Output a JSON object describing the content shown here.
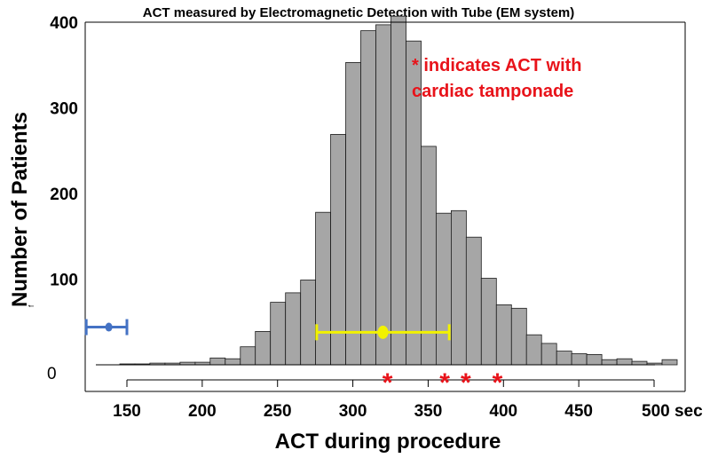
{
  "chart_data": {
    "type": "bar",
    "title": "ACT measured by Electromagnetic Detection with Tube (EM system)",
    "xlabel": "ACT during procedure",
    "ylabel": "Number of Patients",
    "ylabel_mark": "f",
    "x_unit": "sec",
    "xlim": [
      150,
      500
    ],
    "ylim": [
      0,
      400
    ],
    "bin_width": 10,
    "x_ticks": [
      150,
      200,
      250,
      300,
      350,
      400,
      450,
      500
    ],
    "x_tick_labels": [
      "150",
      "200",
      "250",
      "300",
      "350",
      "400",
      "450",
      "500 sec"
    ],
    "y_ticks": [
      100,
      200,
      300,
      400
    ],
    "y_tick_labels": [
      "100",
      "200",
      "300",
      "400"
    ],
    "y_zero_label": "0",
    "bins": [
      {
        "start": 150,
        "count": 1
      },
      {
        "start": 160,
        "count": 1
      },
      {
        "start": 170,
        "count": 2
      },
      {
        "start": 180,
        "count": 2
      },
      {
        "start": 190,
        "count": 3
      },
      {
        "start": 200,
        "count": 3
      },
      {
        "start": 210,
        "count": 8
      },
      {
        "start": 220,
        "count": 7
      },
      {
        "start": 230,
        "count": 21
      },
      {
        "start": 240,
        "count": 39
      },
      {
        "start": 250,
        "count": 73
      },
      {
        "start": 260,
        "count": 84
      },
      {
        "start": 270,
        "count": 99
      },
      {
        "start": 280,
        "count": 178
      },
      {
        "start": 290,
        "count": 269
      },
      {
        "start": 300,
        "count": 353
      },
      {
        "start": 310,
        "count": 390
      },
      {
        "start": 320,
        "count": 397
      },
      {
        "start": 330,
        "count": 407
      },
      {
        "start": 340,
        "count": 378
      },
      {
        "start": 350,
        "count": 255
      },
      {
        "start": 360,
        "count": 177
      },
      {
        "start": 370,
        "count": 180
      },
      {
        "start": 380,
        "count": 149
      },
      {
        "start": 390,
        "count": 101
      },
      {
        "start": 400,
        "count": 70
      },
      {
        "start": 410,
        "count": 66
      },
      {
        "start": 420,
        "count": 35
      },
      {
        "start": 430,
        "count": 25
      },
      {
        "start": 440,
        "count": 16
      },
      {
        "start": 450,
        "count": 13
      },
      {
        "start": 460,
        "count": 12
      },
      {
        "start": 470,
        "count": 6
      },
      {
        "start": 480,
        "count": 7
      },
      {
        "start": 490,
        "count": 4
      },
      {
        "start": 500,
        "count": 2
      },
      {
        "start": 510,
        "count": 6
      }
    ],
    "mean_range": {
      "mean": 320,
      "low": 276,
      "high": 364,
      "y": 38,
      "color": "#f2f200"
    },
    "reference_range": {
      "mean": 138,
      "low": 123,
      "high": 150,
      "y": 44,
      "color": "#4472c4"
    },
    "tamponade_markers": [
      323,
      361,
      375,
      396
    ],
    "marker_symbol": "*",
    "annotation": {
      "line1": "* indicates ACT with",
      "line2": "cardiac tamponade"
    },
    "colors": {
      "bar_fill": "#a6a6a6",
      "bar_stroke": "#1a1a1a",
      "marker": "#e8131a"
    }
  }
}
